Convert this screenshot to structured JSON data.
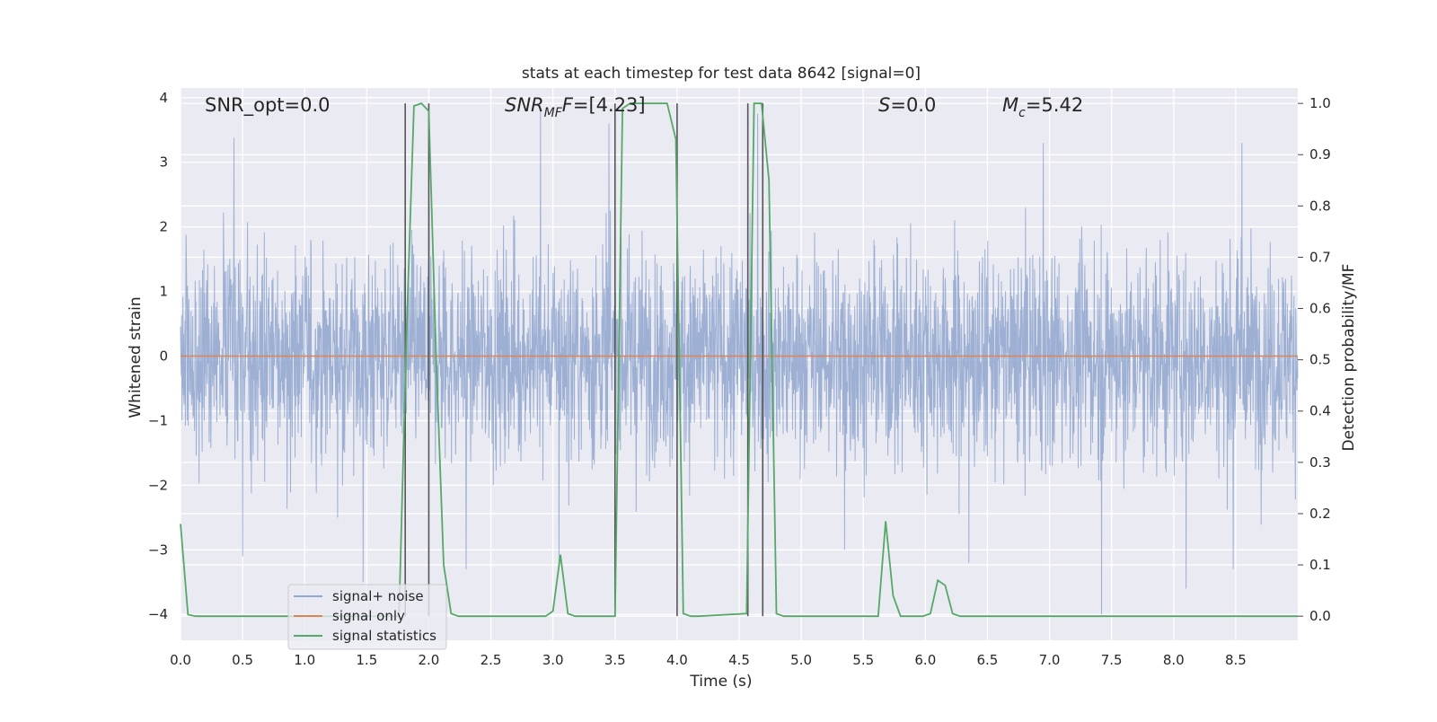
{
  "chart_data": {
    "type": "line",
    "title": "stats at each timestep for test data 8642 [signal=0]",
    "xlabel": "Time (s)",
    "ylabel_left": "Whitened strain",
    "ylabel_right": "Detection probability/MF",
    "xlim": [
      0.0,
      9.0
    ],
    "ylim_left": [
      -4.4,
      4.15
    ],
    "ylim_right": [
      -0.047,
      1.03
    ],
    "x_ticks": [
      "0.0",
      "0.5",
      "1.0",
      "1.5",
      "2.0",
      "2.5",
      "3.0",
      "3.5",
      "4.0",
      "4.5",
      "5.0",
      "5.5",
      "6.0",
      "6.5",
      "7.0",
      "7.5",
      "8.0",
      "8.5"
    ],
    "y_ticks_left": [
      "4",
      "3",
      "2",
      "1",
      "0",
      "−1",
      "−2",
      "−3",
      "−4"
    ],
    "y_ticks_right": [
      "1.0",
      "0.9",
      "0.8",
      "0.7",
      "0.6",
      "0.5",
      "0.4",
      "0.3",
      "0.2",
      "0.1",
      "0.0"
    ],
    "grid": true,
    "legend_position": "lower-left",
    "annotations": {
      "snr_opt": "SNR_opt=0.0",
      "snr_mf_main": "SNR",
      "snr_mf_sub": "MF",
      "snr_mf_rest": "=[4.23]",
      "s_italic": "S",
      "s_rest": "=0.0",
      "mc_main": "M",
      "mc_sub": "c",
      "mc_rest": "=5.42"
    },
    "series": [
      {
        "name": "signal+ noise",
        "axis": "left",
        "color": "#8fa6cf",
        "description_level": "noise approx. within ±1.6 with spikes up to ±3.5",
        "spikes": [
          [
            0.43,
            3.38
          ],
          [
            2.9,
            3.82
          ],
          [
            3.45,
            3.6
          ],
          [
            4.65,
            3.75
          ],
          [
            6.95,
            3.3
          ],
          [
            8.55,
            3.3
          ],
          [
            1.47,
            -3.5
          ],
          [
            2.3,
            -3.3
          ],
          [
            3.05,
            -3.3
          ],
          [
            5.35,
            -3.0
          ],
          [
            6.35,
            -3.2
          ],
          [
            7.42,
            -4.0
          ],
          [
            8.1,
            -3.6
          ],
          [
            8.48,
            -3.3
          ],
          [
            0.5,
            -3.1
          ]
        ]
      },
      {
        "name": "signal only",
        "axis": "left",
        "color": "#dd8452",
        "x": [
          0.0,
          9.0
        ],
        "y": [
          0.0,
          0.0
        ]
      },
      {
        "name": "signal statistics",
        "axis": "right",
        "color": "#55a868",
        "x": [
          0.0,
          0.06,
          0.12,
          1.76,
          1.82,
          1.88,
          1.94,
          2.0,
          2.06,
          2.12,
          2.18,
          2.24,
          2.94,
          3.0,
          3.06,
          3.12,
          3.18,
          3.5,
          3.56,
          3.62,
          3.68,
          3.74,
          3.8,
          3.86,
          3.92,
          3.99,
          4.05,
          4.11,
          4.17,
          4.56,
          4.62,
          4.68,
          4.74,
          4.8,
          4.86,
          4.92,
          5.62,
          5.68,
          5.74,
          5.8,
          5.86,
          5.98,
          6.04,
          6.1,
          6.16,
          6.22,
          6.28,
          9.0
        ],
        "y": [
          0.18,
          0.003,
          0.0,
          0.0,
          0.55,
          0.995,
          1.0,
          0.985,
          0.5,
          0.1,
          0.005,
          0.0,
          0.0,
          0.01,
          0.12,
          0.005,
          0.0,
          0.0,
          0.99,
          1.0,
          1.0,
          1.0,
          1.0,
          1.0,
          1.0,
          0.93,
          0.005,
          0.0,
          0.0,
          0.005,
          1.0,
          1.0,
          0.85,
          0.005,
          0.0,
          0.0,
          0.0,
          0.185,
          0.04,
          0.0,
          0.0,
          0.0,
          0.005,
          0.07,
          0.06,
          0.005,
          0.0,
          0.0
        ]
      }
    ],
    "vertical_markers": [
      1.81,
      2.0,
      3.5,
      4.0,
      4.57,
      4.69
    ],
    "marker_color": "#555555"
  }
}
